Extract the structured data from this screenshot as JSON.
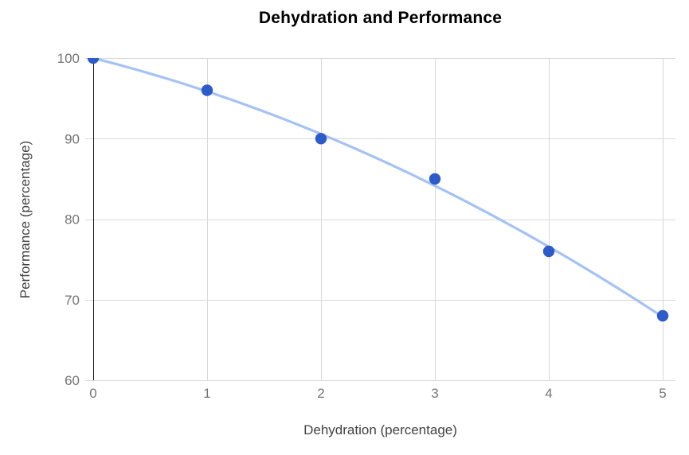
{
  "chart_data": {
    "type": "scatter",
    "title": "Dehydration and Performance",
    "xlabel": "Dehydration (percentage)",
    "ylabel": "Performance (percentage)",
    "x": [
      0,
      1,
      2,
      3,
      4,
      5
    ],
    "y": [
      100,
      96,
      90,
      85,
      76,
      68
    ],
    "xlim": [
      0,
      5
    ],
    "ylim": [
      60,
      100
    ],
    "xticks": [
      0,
      1,
      2,
      3,
      4,
      5
    ],
    "yticks": [
      60,
      70,
      80,
      90,
      100
    ],
    "grid": true,
    "legend": false,
    "trendline": {
      "type": "quadratic",
      "coefficients": {
        "a": 100.0,
        "b": -3.5714,
        "c": -0.5714
      }
    },
    "colors": {
      "point": "#2d5bc9",
      "trendline": "#a4c2f4",
      "gridline": "#d9d9d9",
      "axis_line": "#1a1a1a",
      "tick_label": "#757575",
      "axis_title": "#424242",
      "title": "#000000"
    }
  }
}
